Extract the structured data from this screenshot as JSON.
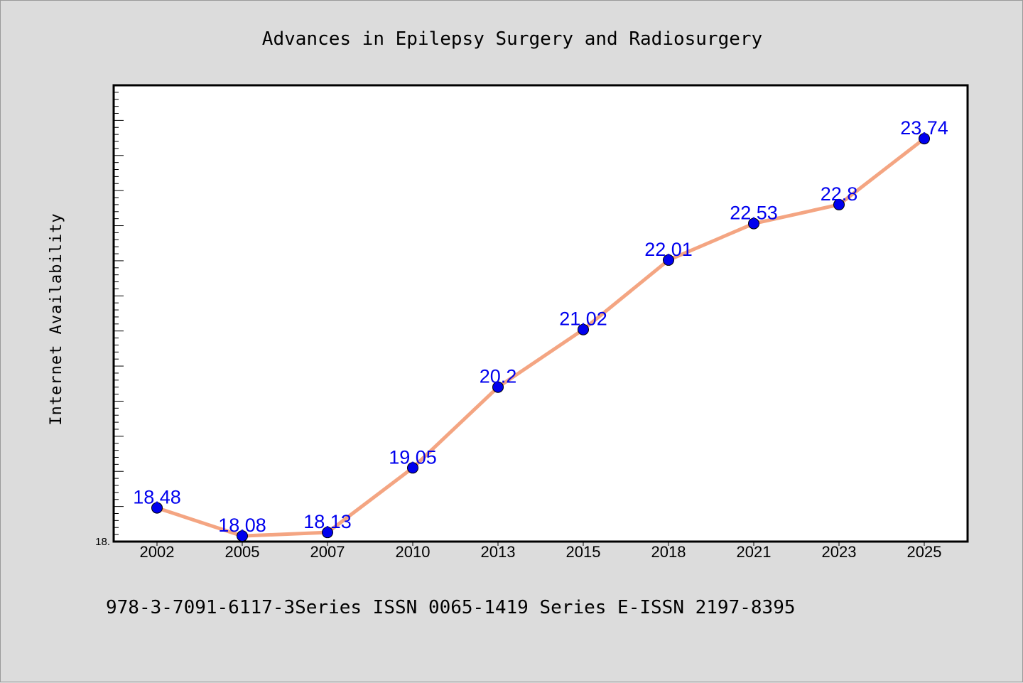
{
  "chart_data": {
    "type": "line",
    "title": "Advances in Epilepsy Surgery and Radiosurgery",
    "xlabel": "",
    "ylabel": "Internet Availability",
    "categories": [
      "2002",
      "2005",
      "2007",
      "2010",
      "2013",
      "2015",
      "2018",
      "2021",
      "2023",
      "2025"
    ],
    "series": [
      {
        "values": [
          18.48,
          18.08,
          18.13,
          19.05,
          20.2,
          21.02,
          22.01,
          22.53,
          22.8,
          23.74
        ],
        "labels": [
          "18.48",
          "18.08",
          "18.13",
          "19.05",
          "20.2",
          "21.02",
          "22.01",
          "22.53",
          "22.8",
          "23.74"
        ]
      }
    ],
    "ylim": [
      18.0,
      24.5
    ],
    "y_tick_label": "18.",
    "grid": false,
    "legend": "none",
    "colors": {
      "line": "#f4a582",
      "marker": "#0000ee",
      "data_label": "#0000ee",
      "plot_background": "#ffffff",
      "figure_background": "#dcdcdc"
    }
  },
  "footer": "978-3-7091-6117-3Series ISSN 0065-1419 Series E-ISSN 2197-8395"
}
